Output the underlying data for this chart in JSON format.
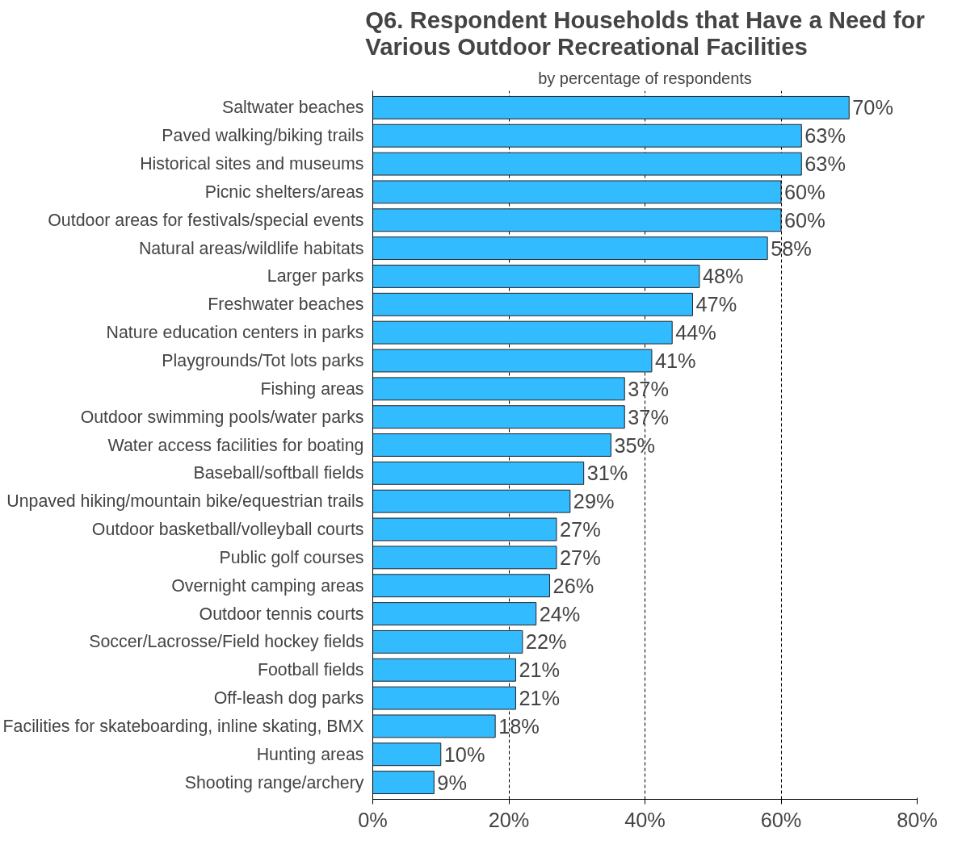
{
  "chart_data": {
    "type": "bar",
    "orientation": "horizontal",
    "title": "Q6. Respondent Households that Have a Need for\nVarious Outdoor Recreational Facilities",
    "subtitle": "by percentage of respondents",
    "categories": [
      "Saltwater beaches",
      "Paved walking/biking trails",
      "Historical sites and museums",
      "Picnic shelters/areas",
      "Outdoor areas for festivals/special events",
      "Natural areas/wildlife habitats",
      "Larger parks",
      "Freshwater beaches",
      "Nature education centers in parks",
      "Playgrounds/Tot lots parks",
      "Fishing areas",
      "Outdoor swimming pools/water parks",
      "Water access facilities for boating",
      "Baseball/softball fields",
      "Unpaved hiking/mountain bike/equestrian trails",
      "Outdoor basketball/volleyball courts",
      "Public golf courses",
      "Overnight camping areas",
      "Outdoor tennis courts",
      "Soccer/Lacrosse/Field hockey fields",
      "Football fields",
      "Off-leash dog parks",
      "Facilities for skateboarding, inline skating, BMX",
      "Hunting areas",
      "Shooting range/archery"
    ],
    "values": [
      70,
      63,
      63,
      60,
      60,
      58,
      48,
      47,
      44,
      41,
      37,
      37,
      35,
      31,
      29,
      27,
      27,
      26,
      24,
      22,
      21,
      21,
      18,
      10,
      9
    ],
    "value_labels": [
      "70%",
      "63%",
      "63%",
      "60%",
      "60%",
      "58%",
      "48%",
      "47%",
      "44%",
      "41%",
      "37%",
      "37%",
      "35%",
      "31%",
      "29%",
      "27%",
      "27%",
      "26%",
      "24%",
      "22%",
      "21%",
      "21%",
      "18%",
      "10%",
      "9%"
    ],
    "color": "#33bbff",
    "xlim": [
      0,
      80
    ],
    "xticks": [
      {
        "value": 0,
        "label": "0%"
      },
      {
        "value": 20,
        "label": "20%"
      },
      {
        "value": 40,
        "label": "40%"
      },
      {
        "value": 60,
        "label": "60%"
      },
      {
        "value": 80,
        "label": "80%"
      }
    ],
    "grid": "x"
  }
}
